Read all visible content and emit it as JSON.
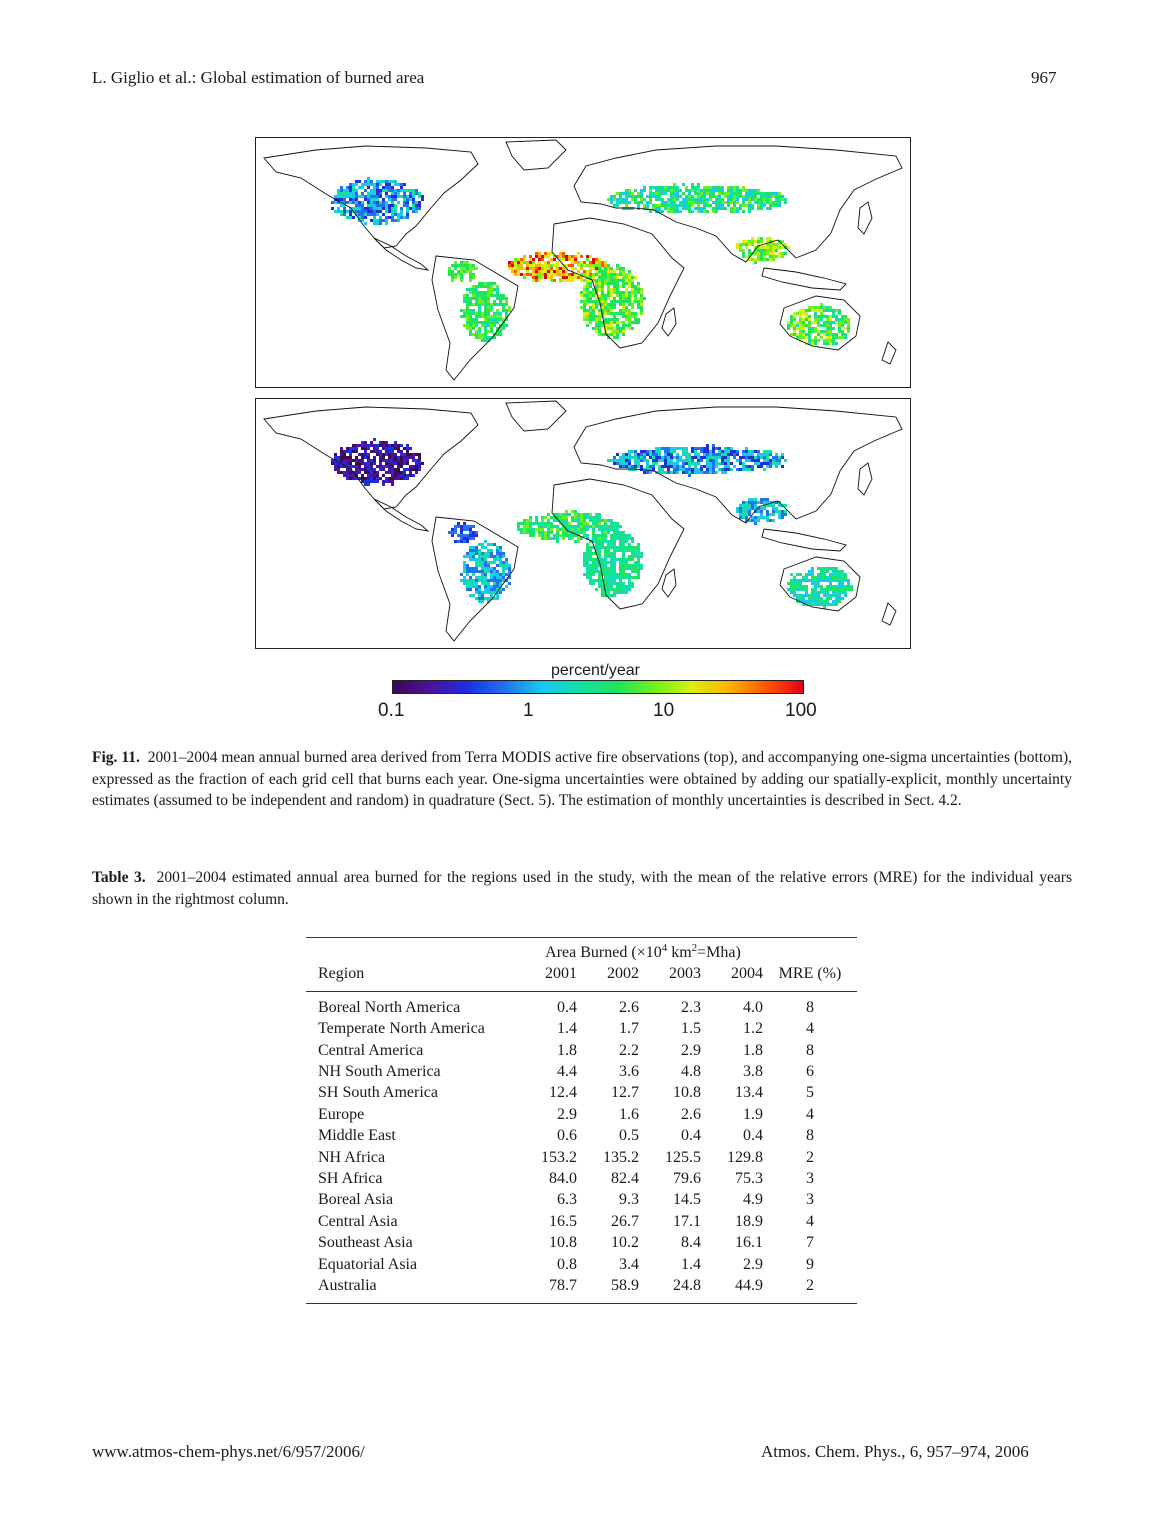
{
  "header": {
    "running_title": "L. Giglio et al.: Global estimation of burned area",
    "page_number": "967"
  },
  "figure": {
    "colorbar": {
      "label": "percent/year",
      "ticks": [
        "0.1",
        "1",
        "10",
        "100"
      ],
      "colors": [
        "#3b0a52",
        "#4b12a0",
        "#1e2fe0",
        "#1f73f0",
        "#19c8f0",
        "#12e0a8",
        "#1de65a",
        "#6cf01e",
        "#d8f010",
        "#ffb400",
        "#ff5a00",
        "#e60014"
      ]
    },
    "caption_label": "Fig. 11.",
    "caption_text": "2001–2004 mean annual burned area derived from Terra MODIS active fire observations (top), and accompanying one-sigma uncertainties (bottom), expressed as the fraction of each grid cell that burns each year. One-sigma uncertainties were obtained by adding our spatially-explicit, monthly uncertainty estimates (assumed to be independent and random) in quadrature (Sect. 5). The estimation of monthly uncertainties is described in Sect. 4.2."
  },
  "table": {
    "caption_label": "Table 3.",
    "caption_text": "2001–2004 estimated annual area burned for the regions used in the study, with the mean of the relative errors (MRE) for the individual years shown in the rightmost column.",
    "group_header_pre": "Area Burned (×10",
    "group_header_exp1": "4",
    "group_header_mid": " km",
    "group_header_exp2": "2",
    "group_header_post": "=Mha)",
    "columns": [
      "Region",
      "2001",
      "2002",
      "2003",
      "2004",
      "MRE (%)"
    ],
    "rows": [
      [
        "Boreal North America",
        "0.4",
        "2.6",
        "2.3",
        "4.0",
        "8"
      ],
      [
        "Temperate North America",
        "1.4",
        "1.7",
        "1.5",
        "1.2",
        "4"
      ],
      [
        "Central America",
        "1.8",
        "2.2",
        "2.9",
        "1.8",
        "8"
      ],
      [
        "NH South America",
        "4.4",
        "3.6",
        "4.8",
        "3.8",
        "6"
      ],
      [
        "SH South America",
        "12.4",
        "12.7",
        "10.8",
        "13.4",
        "5"
      ],
      [
        "Europe",
        "2.9",
        "1.6",
        "2.6",
        "1.9",
        "4"
      ],
      [
        "Middle East",
        "0.6",
        "0.5",
        "0.4",
        "0.4",
        "8"
      ],
      [
        "NH Africa",
        "153.2",
        "135.2",
        "125.5",
        "129.8",
        "2"
      ],
      [
        "SH Africa",
        "84.0",
        "82.4",
        "79.6",
        "75.3",
        "3"
      ],
      [
        "Boreal Asia",
        "6.3",
        "9.3",
        "14.5",
        "4.9",
        "3"
      ],
      [
        "Central Asia",
        "16.5",
        "26.7",
        "17.1",
        "18.9",
        "4"
      ],
      [
        "Southeast Asia",
        "10.8",
        "10.2",
        "8.4",
        "16.1",
        "7"
      ],
      [
        "Equatorial Asia",
        "0.8",
        "3.4",
        "1.4",
        "2.9",
        "9"
      ],
      [
        "Australia",
        "78.7",
        "58.9",
        "24.8",
        "44.9",
        "2"
      ]
    ]
  },
  "footer": {
    "url": "www.atmos-chem-phys.net/6/957/2006/",
    "citation": "Atmos. Chem. Phys., 6, 957–974, 2006"
  }
}
